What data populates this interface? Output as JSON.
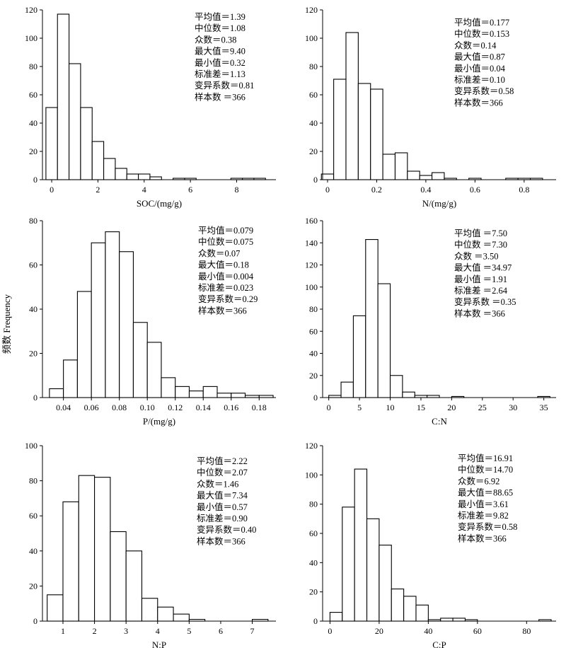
{
  "figure": {
    "shared_ylabel": "频数 Frequency"
  },
  "chart_data": [
    {
      "type": "bar",
      "xlabel": "SOC/(mg/g)",
      "ylabel": "频数 Frequency",
      "xlim": [
        -0.4,
        9.7
      ],
      "ylim": [
        0,
        120
      ],
      "xticks": [
        0,
        2,
        4,
        6,
        8
      ],
      "yticks": [
        0,
        20,
        40,
        60,
        80,
        100,
        120
      ],
      "bin_width": 0.5,
      "bins": [
        {
          "x0": -0.25,
          "count": 51
        },
        {
          "x0": 0.25,
          "count": 117
        },
        {
          "x0": 0.75,
          "count": 82
        },
        {
          "x0": 1.25,
          "count": 51
        },
        {
          "x0": 1.75,
          "count": 27
        },
        {
          "x0": 2.25,
          "count": 15
        },
        {
          "x0": 2.75,
          "count": 8
        },
        {
          "x0": 3.25,
          "count": 4
        },
        {
          "x0": 3.75,
          "count": 4
        },
        {
          "x0": 4.25,
          "count": 2
        },
        {
          "x0": 4.75,
          "count": 0
        },
        {
          "x0": 5.25,
          "count": 1
        },
        {
          "x0": 5.75,
          "count": 1
        },
        {
          "x0": 6.25,
          "count": 0
        },
        {
          "x0": 6.75,
          "count": 0
        },
        {
          "x0": 7.25,
          "count": 0
        },
        {
          "x0": 7.75,
          "count": 1
        },
        {
          "x0": 8.25,
          "count": 1
        },
        {
          "x0": 8.75,
          "count": 1
        }
      ],
      "stats": [
        "平均值＝1.39",
        "中位数＝1.08",
        "众数＝0.38",
        "最大值＝9.40",
        "最小值＝0.32",
        "标准差＝1.13",
        "变异系数＝0.81",
        "样本数 ＝366"
      ]
    },
    {
      "type": "bar",
      "xlabel": "N/(mg/g)",
      "ylabel": "频数 Frequency",
      "xlim": [
        -0.02,
        0.93
      ],
      "ylim": [
        0,
        120
      ],
      "xticks": [
        0,
        0.2,
        0.4,
        0.6,
        0.8
      ],
      "yticks": [
        0,
        20,
        40,
        60,
        80,
        100,
        120
      ],
      "bin_width": 0.05,
      "bins": [
        {
          "x0": -0.025,
          "count": 4
        },
        {
          "x0": 0.025,
          "count": 71
        },
        {
          "x0": 0.075,
          "count": 104
        },
        {
          "x0": 0.125,
          "count": 68
        },
        {
          "x0": 0.175,
          "count": 64
        },
        {
          "x0": 0.225,
          "count": 18
        },
        {
          "x0": 0.275,
          "count": 19
        },
        {
          "x0": 0.325,
          "count": 6
        },
        {
          "x0": 0.375,
          "count": 3
        },
        {
          "x0": 0.425,
          "count": 5
        },
        {
          "x0": 0.475,
          "count": 1
        },
        {
          "x0": 0.525,
          "count": 0
        },
        {
          "x0": 0.575,
          "count": 1
        },
        {
          "x0": 0.625,
          "count": 0
        },
        {
          "x0": 0.675,
          "count": 0
        },
        {
          "x0": 0.725,
          "count": 1
        },
        {
          "x0": 0.775,
          "count": 1
        },
        {
          "x0": 0.825,
          "count": 1
        }
      ],
      "stats": [
        "平均值＝0.177",
        "中位数＝0.153",
        "众数＝0.14",
        "最大值＝0.87",
        "最小值＝0.04",
        "标准差＝0.10",
        "变异系数＝0.58",
        "样本数＝366"
      ]
    },
    {
      "type": "bar",
      "xlabel": "P/(mg/g)",
      "ylabel": "频数 Frequency",
      "xlim": [
        0.025,
        0.192
      ],
      "ylim": [
        0,
        80
      ],
      "xticks": [
        0.04,
        0.06,
        0.08,
        0.1,
        0.12,
        0.14,
        0.16,
        0.18
      ],
      "xtick_labels": [
        "0.04",
        "0.06",
        "0.08",
        "0.10",
        "0.12",
        "0.14",
        "0.16",
        "0.18"
      ],
      "yticks": [
        0,
        20,
        40,
        60,
        80
      ],
      "bin_width": 0.01,
      "bins": [
        {
          "x0": 0.03,
          "count": 4
        },
        {
          "x0": 0.04,
          "count": 17
        },
        {
          "x0": 0.05,
          "count": 48
        },
        {
          "x0": 0.06,
          "count": 70
        },
        {
          "x0": 0.07,
          "count": 75
        },
        {
          "x0": 0.08,
          "count": 66
        },
        {
          "x0": 0.09,
          "count": 34
        },
        {
          "x0": 0.1,
          "count": 25
        },
        {
          "x0": 0.11,
          "count": 9
        },
        {
          "x0": 0.12,
          "count": 5
        },
        {
          "x0": 0.13,
          "count": 3
        },
        {
          "x0": 0.14,
          "count": 5
        },
        {
          "x0": 0.15,
          "count": 2
        },
        {
          "x0": 0.16,
          "count": 2
        },
        {
          "x0": 0.17,
          "count": 1
        },
        {
          "x0": 0.18,
          "count": 1
        }
      ],
      "stats": [
        "平均值＝0.079",
        "中位数＝0.075",
        "众数＝0.07",
        "最大值＝0.18",
        "最小值＝0.004",
        "标准差＝0.023",
        "变异系数＝0.29",
        "样本数＝366"
      ]
    },
    {
      "type": "bar",
      "xlabel": "C:N",
      "ylabel": "频数 Frequency",
      "xlim": [
        -1,
        37
      ],
      "ylim": [
        0,
        160
      ],
      "xticks": [
        0,
        5,
        10,
        15,
        20,
        25,
        30,
        35
      ],
      "yticks": [
        0,
        20,
        40,
        60,
        80,
        100,
        120,
        140,
        160
      ],
      "bin_width": 2,
      "bins": [
        {
          "x0": 0,
          "count": 2
        },
        {
          "x0": 2,
          "count": 14
        },
        {
          "x0": 4,
          "count": 74
        },
        {
          "x0": 6,
          "count": 143
        },
        {
          "x0": 8,
          "count": 103
        },
        {
          "x0": 10,
          "count": 20
        },
        {
          "x0": 12,
          "count": 5
        },
        {
          "x0": 14,
          "count": 2
        },
        {
          "x0": 16,
          "count": 2
        },
        {
          "x0": 18,
          "count": 0
        },
        {
          "x0": 20,
          "count": 1
        },
        {
          "x0": 22,
          "count": 0
        },
        {
          "x0": 24,
          "count": 0
        },
        {
          "x0": 26,
          "count": 0
        },
        {
          "x0": 28,
          "count": 0
        },
        {
          "x0": 30,
          "count": 0
        },
        {
          "x0": 32,
          "count": 0
        },
        {
          "x0": 34,
          "count": 1
        }
      ],
      "stats": [
        "平均值 ＝7.50",
        "中位数 ＝7.30",
        "众数 ＝3.50",
        "最大值 ＝34.97",
        "最小值 ＝1.91",
        "标准差 ＝2.64",
        "变异系数 ＝0.35",
        "样本数 ＝366"
      ]
    },
    {
      "type": "bar",
      "xlabel": "N:P",
      "ylabel": "频数 Frequency",
      "xlim": [
        0.35,
        7.75
      ],
      "ylim": [
        0,
        100
      ],
      "xticks": [
        1,
        2,
        3,
        4,
        5,
        6,
        7
      ],
      "yticks": [
        0,
        20,
        40,
        60,
        80,
        100
      ],
      "bin_width": 0.5,
      "bins": [
        {
          "x0": 0.5,
          "count": 15
        },
        {
          "x0": 1.0,
          "count": 68
        },
        {
          "x0": 1.5,
          "count": 83
        },
        {
          "x0": 2.0,
          "count": 82
        },
        {
          "x0": 2.5,
          "count": 51
        },
        {
          "x0": 3.0,
          "count": 40
        },
        {
          "x0": 3.5,
          "count": 13
        },
        {
          "x0": 4.0,
          "count": 8
        },
        {
          "x0": 4.5,
          "count": 4
        },
        {
          "x0": 5.0,
          "count": 1
        },
        {
          "x0": 5.5,
          "count": 0
        },
        {
          "x0": 6.0,
          "count": 0
        },
        {
          "x0": 6.5,
          "count": 0
        },
        {
          "x0": 7.0,
          "count": 1
        }
      ],
      "stats": [
        "平均值＝2.22",
        "中位数＝2.07",
        "众数＝1.46",
        "最大值＝7.34",
        "最小值＝0.57",
        "标准差＝0.90",
        "变异系数＝0.40",
        "样本数＝366"
      ]
    },
    {
      "type": "bar",
      "xlabel": "C:P",
      "ylabel": "频数 Frequency",
      "xlim": [
        -3,
        92
      ],
      "ylim": [
        0,
        120
      ],
      "xticks": [
        0,
        20,
        40,
        60,
        80
      ],
      "yticks": [
        0,
        20,
        40,
        60,
        80,
        100,
        120
      ],
      "bin_width": 5,
      "bins": [
        {
          "x0": 0,
          "count": 6
        },
        {
          "x0": 5,
          "count": 78
        },
        {
          "x0": 10,
          "count": 104
        },
        {
          "x0": 15,
          "count": 70
        },
        {
          "x0": 20,
          "count": 52
        },
        {
          "x0": 25,
          "count": 22
        },
        {
          "x0": 30,
          "count": 17
        },
        {
          "x0": 35,
          "count": 11
        },
        {
          "x0": 40,
          "count": 1
        },
        {
          "x0": 45,
          "count": 2
        },
        {
          "x0": 50,
          "count": 2
        },
        {
          "x0": 55,
          "count": 1
        },
        {
          "x0": 60,
          "count": 0
        },
        {
          "x0": 65,
          "count": 0
        },
        {
          "x0": 70,
          "count": 0
        },
        {
          "x0": 75,
          "count": 0
        },
        {
          "x0": 80,
          "count": 0
        },
        {
          "x0": 85,
          "count": 1
        }
      ],
      "stats": [
        "平均值＝16.91",
        "中位数＝14.70",
        "众数＝6.92",
        "最大值＝88.65",
        "最小值＝3.61",
        "标准差＝9.82",
        "变异系数＝0.58",
        "样本数＝366"
      ]
    }
  ]
}
